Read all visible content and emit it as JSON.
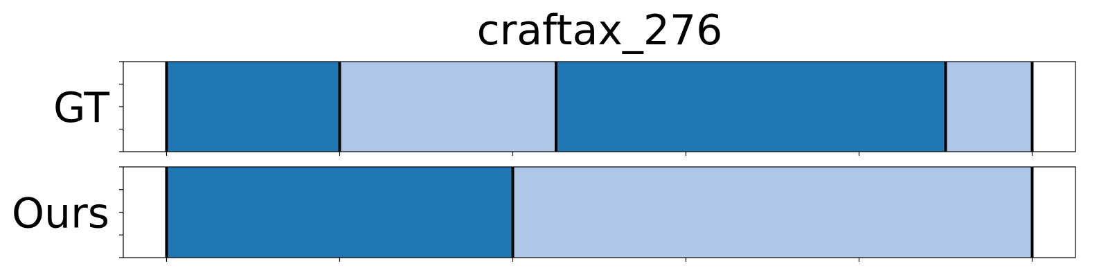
{
  "chart_data": {
    "type": "segment-timeline",
    "title": "craftax_276",
    "xlim": [
      0,
      22
    ],
    "colors": {
      "dark": "#1f77b4",
      "light": "#aec7e8",
      "boundary": "#000000",
      "frame": "#000000"
    },
    "x_ticks": [
      1,
      5,
      9,
      13,
      17,
      21
    ],
    "rows": [
      {
        "label": "GT",
        "segments": [
          {
            "start": 1,
            "end": 5,
            "color": "dark"
          },
          {
            "start": 5,
            "end": 10,
            "color": "light"
          },
          {
            "start": 10,
            "end": 19,
            "color": "dark"
          },
          {
            "start": 19,
            "end": 21,
            "color": "light"
          }
        ],
        "boundaries": [
          1,
          5,
          10,
          19,
          21
        ]
      },
      {
        "label": "Ours",
        "segments": [
          {
            "start": 1,
            "end": 9,
            "color": "dark"
          },
          {
            "start": 9,
            "end": 21,
            "color": "light"
          }
        ],
        "boundaries": [
          1,
          9,
          21
        ]
      }
    ]
  }
}
